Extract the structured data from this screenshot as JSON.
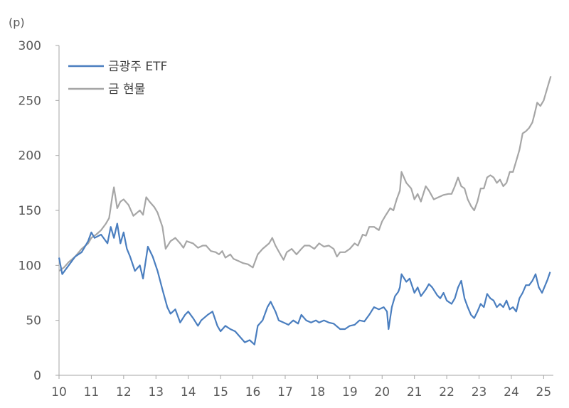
{
  "chart_data": {
    "type": "line",
    "unit_label": "(p)",
    "ylim": [
      0,
      300
    ],
    "xlim": [
      10,
      25.3
    ],
    "y_ticks": [
      0,
      50,
      100,
      150,
      200,
      250,
      300
    ],
    "x_ticks": [
      "10",
      "11",
      "12",
      "13",
      "14",
      "15",
      "16",
      "17",
      "18",
      "19",
      "20",
      "21",
      "22",
      "23",
      "24",
      "25"
    ],
    "grid": false,
    "legend_position": "top-left",
    "series": [
      {
        "name": "금광주 ETF",
        "color": "#4a7ebf",
        "points": [
          [
            10.0,
            107
          ],
          [
            10.1,
            92
          ],
          [
            10.3,
            100
          ],
          [
            10.5,
            108
          ],
          [
            10.7,
            112
          ],
          [
            10.9,
            122
          ],
          [
            11.0,
            130
          ],
          [
            11.1,
            125
          ],
          [
            11.3,
            128
          ],
          [
            11.5,
            120
          ],
          [
            11.6,
            135
          ],
          [
            11.7,
            125
          ],
          [
            11.8,
            138
          ],
          [
            11.9,
            120
          ],
          [
            12.0,
            130
          ],
          [
            12.1,
            115
          ],
          [
            12.2,
            108
          ],
          [
            12.35,
            95
          ],
          [
            12.5,
            100
          ],
          [
            12.6,
            88
          ],
          [
            12.75,
            117
          ],
          [
            12.9,
            108
          ],
          [
            13.05,
            95
          ],
          [
            13.2,
            78
          ],
          [
            13.35,
            62
          ],
          [
            13.45,
            56
          ],
          [
            13.6,
            60
          ],
          [
            13.75,
            48
          ],
          [
            13.9,
            55
          ],
          [
            14.0,
            58
          ],
          [
            14.15,
            52
          ],
          [
            14.3,
            45
          ],
          [
            14.4,
            50
          ],
          [
            14.6,
            55
          ],
          [
            14.75,
            58
          ],
          [
            14.9,
            45
          ],
          [
            15.0,
            40
          ],
          [
            15.15,
            45
          ],
          [
            15.3,
            42
          ],
          [
            15.45,
            40
          ],
          [
            15.6,
            35
          ],
          [
            15.75,
            30
          ],
          [
            15.9,
            32
          ],
          [
            16.05,
            28
          ],
          [
            16.15,
            45
          ],
          [
            16.3,
            50
          ],
          [
            16.45,
            62
          ],
          [
            16.55,
            67
          ],
          [
            16.7,
            58
          ],
          [
            16.8,
            50
          ],
          [
            16.95,
            48
          ],
          [
            17.1,
            46
          ],
          [
            17.25,
            50
          ],
          [
            17.4,
            47
          ],
          [
            17.5,
            55
          ],
          [
            17.65,
            50
          ],
          [
            17.8,
            48
          ],
          [
            17.95,
            50
          ],
          [
            18.05,
            48
          ],
          [
            18.2,
            50
          ],
          [
            18.35,
            48
          ],
          [
            18.5,
            47
          ],
          [
            18.7,
            42
          ],
          [
            18.85,
            42
          ],
          [
            19.0,
            45
          ],
          [
            19.15,
            46
          ],
          [
            19.3,
            50
          ],
          [
            19.45,
            49
          ],
          [
            19.6,
            55
          ],
          [
            19.75,
            62
          ],
          [
            19.9,
            60
          ],
          [
            20.05,
            62
          ],
          [
            20.15,
            58
          ],
          [
            20.2,
            42
          ],
          [
            20.3,
            62
          ],
          [
            20.4,
            72
          ],
          [
            20.5,
            76
          ],
          [
            20.55,
            80
          ],
          [
            20.6,
            92
          ],
          [
            20.75,
            85
          ],
          [
            20.85,
            88
          ],
          [
            21.0,
            75
          ],
          [
            21.1,
            80
          ],
          [
            21.2,
            72
          ],
          [
            21.35,
            78
          ],
          [
            21.45,
            83
          ],
          [
            21.55,
            80
          ],
          [
            21.7,
            73
          ],
          [
            21.8,
            70
          ],
          [
            21.9,
            75
          ],
          [
            22.0,
            68
          ],
          [
            22.15,
            65
          ],
          [
            22.25,
            70
          ],
          [
            22.35,
            80
          ],
          [
            22.45,
            86
          ],
          [
            22.55,
            70
          ],
          [
            22.65,
            62
          ],
          [
            22.75,
            55
          ],
          [
            22.85,
            52
          ],
          [
            22.95,
            58
          ],
          [
            23.05,
            65
          ],
          [
            23.15,
            62
          ],
          [
            23.25,
            74
          ],
          [
            23.35,
            70
          ],
          [
            23.45,
            68
          ],
          [
            23.55,
            62
          ],
          [
            23.65,
            65
          ],
          [
            23.75,
            62
          ],
          [
            23.85,
            68
          ],
          [
            23.95,
            60
          ],
          [
            24.05,
            62
          ],
          [
            24.15,
            58
          ],
          [
            24.25,
            70
          ],
          [
            24.35,
            75
          ],
          [
            24.45,
            82
          ],
          [
            24.55,
            82
          ],
          [
            24.65,
            86
          ],
          [
            24.75,
            92
          ],
          [
            24.85,
            80
          ],
          [
            24.95,
            75
          ],
          [
            25.05,
            82
          ],
          [
            25.12,
            87
          ],
          [
            25.2,
            94
          ]
        ]
      },
      {
        "name": "금 현물",
        "color": "#a6a6a6",
        "points": [
          [
            10.0,
            95
          ],
          [
            10.15,
            98
          ],
          [
            10.3,
            103
          ],
          [
            10.5,
            108
          ],
          [
            10.7,
            115
          ],
          [
            10.9,
            120
          ],
          [
            11.0,
            125
          ],
          [
            11.15,
            128
          ],
          [
            11.3,
            132
          ],
          [
            11.45,
            138
          ],
          [
            11.55,
            143
          ],
          [
            11.65,
            163
          ],
          [
            11.7,
            171
          ],
          [
            11.8,
            152
          ],
          [
            11.9,
            158
          ],
          [
            12.0,
            160
          ],
          [
            12.15,
            155
          ],
          [
            12.3,
            145
          ],
          [
            12.5,
            150
          ],
          [
            12.6,
            146
          ],
          [
            12.7,
            162
          ],
          [
            12.8,
            158
          ],
          [
            12.95,
            153
          ],
          [
            13.05,
            148
          ],
          [
            13.2,
            135
          ],
          [
            13.3,
            115
          ],
          [
            13.45,
            122
          ],
          [
            13.6,
            125
          ],
          [
            13.75,
            120
          ],
          [
            13.85,
            116
          ],
          [
            13.95,
            122
          ],
          [
            14.05,
            121
          ],
          [
            14.15,
            120
          ],
          [
            14.3,
            116
          ],
          [
            14.45,
            118
          ],
          [
            14.55,
            118
          ],
          [
            14.7,
            113
          ],
          [
            14.85,
            112
          ],
          [
            14.95,
            110
          ],
          [
            15.05,
            113
          ],
          [
            15.15,
            107
          ],
          [
            15.3,
            110
          ],
          [
            15.4,
            106
          ],
          [
            15.55,
            104
          ],
          [
            15.7,
            102
          ],
          [
            15.85,
            101
          ],
          [
            16.0,
            98
          ],
          [
            16.15,
            110
          ],
          [
            16.3,
            115
          ],
          [
            16.5,
            120
          ],
          [
            16.6,
            125
          ],
          [
            16.7,
            118
          ],
          [
            16.85,
            110
          ],
          [
            16.95,
            105
          ],
          [
            17.05,
            112
          ],
          [
            17.2,
            115
          ],
          [
            17.35,
            110
          ],
          [
            17.5,
            115
          ],
          [
            17.6,
            118
          ],
          [
            17.75,
            118
          ],
          [
            17.9,
            115
          ],
          [
            18.05,
            120
          ],
          [
            18.2,
            117
          ],
          [
            18.35,
            118
          ],
          [
            18.5,
            115
          ],
          [
            18.6,
            108
          ],
          [
            18.7,
            112
          ],
          [
            18.85,
            112
          ],
          [
            19.0,
            115
          ],
          [
            19.15,
            120
          ],
          [
            19.25,
            118
          ],
          [
            19.4,
            128
          ],
          [
            19.5,
            127
          ],
          [
            19.6,
            135
          ],
          [
            19.75,
            135
          ],
          [
            19.9,
            132
          ],
          [
            20.0,
            140
          ],
          [
            20.1,
            145
          ],
          [
            20.25,
            152
          ],
          [
            20.35,
            150
          ],
          [
            20.45,
            160
          ],
          [
            20.55,
            168
          ],
          [
            20.6,
            185
          ],
          [
            20.75,
            175
          ],
          [
            20.9,
            170
          ],
          [
            21.0,
            160
          ],
          [
            21.1,
            165
          ],
          [
            21.2,
            158
          ],
          [
            21.35,
            172
          ],
          [
            21.45,
            168
          ],
          [
            21.6,
            160
          ],
          [
            21.75,
            162
          ],
          [
            21.9,
            164
          ],
          [
            22.05,
            165
          ],
          [
            22.15,
            165
          ],
          [
            22.25,
            172
          ],
          [
            22.35,
            180
          ],
          [
            22.45,
            172
          ],
          [
            22.55,
            170
          ],
          [
            22.65,
            160
          ],
          [
            22.75,
            154
          ],
          [
            22.85,
            150
          ],
          [
            22.95,
            158
          ],
          [
            23.05,
            170
          ],
          [
            23.15,
            170
          ],
          [
            23.25,
            180
          ],
          [
            23.35,
            182
          ],
          [
            23.45,
            180
          ],
          [
            23.55,
            175
          ],
          [
            23.65,
            178
          ],
          [
            23.75,
            172
          ],
          [
            23.85,
            175
          ],
          [
            23.95,
            185
          ],
          [
            24.05,
            185
          ],
          [
            24.15,
            195
          ],
          [
            24.25,
            205
          ],
          [
            24.35,
            220
          ],
          [
            24.45,
            222
          ],
          [
            24.55,
            225
          ],
          [
            24.65,
            230
          ],
          [
            24.72,
            238
          ],
          [
            24.8,
            248
          ],
          [
            24.9,
            245
          ],
          [
            25.0,
            250
          ],
          [
            25.08,
            258
          ],
          [
            25.15,
            265
          ],
          [
            25.22,
            272
          ]
        ]
      }
    ]
  }
}
